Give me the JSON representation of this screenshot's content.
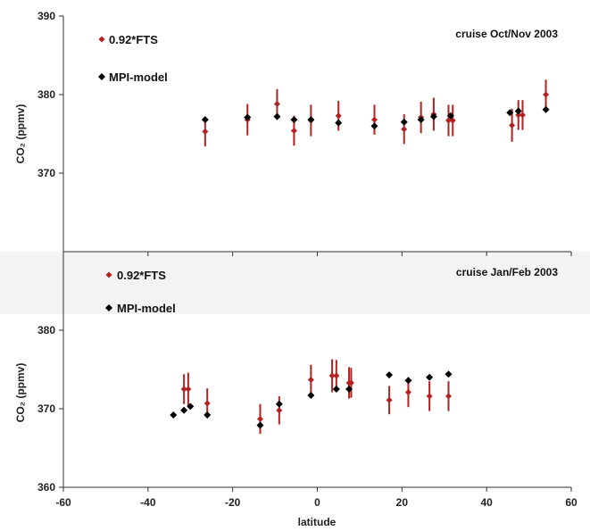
{
  "colors": {
    "fts": "#b22222",
    "model": "#000000",
    "axis": "#333333",
    "panel2_bg": "#f3f3f3"
  },
  "chart_data": [
    {
      "type": "scatter",
      "title": "cruise Oct/Nov 2003",
      "xlabel": "",
      "ylabel": "CO₂ (ppmv)",
      "xlim": [
        -60,
        60
      ],
      "ylim": [
        360,
        390
      ],
      "yticks": [
        370,
        380,
        390
      ],
      "x_tick_labels_shown": false,
      "legend_position": "top-left",
      "series": [
        {
          "name": "0.92*FTS",
          "marker": "diamond",
          "x": [
            -26.5,
            -16.5,
            -9.5,
            -5.5,
            -1.5,
            5,
            13.5,
            20.5,
            24.5,
            27.5,
            31,
            32,
            46,
            47.5,
            48.5,
            54
          ],
          "y": [
            375.3,
            376.8,
            378.8,
            375.4,
            376.7,
            377.3,
            376.8,
            375.6,
            377.1,
            377.5,
            376.7,
            376.7,
            376.1,
            377.4,
            377.4,
            380.0
          ],
          "err": [
            1.9,
            2.0,
            1.9,
            1.9,
            2.0,
            1.9,
            1.9,
            1.9,
            2.0,
            2.1,
            2.0,
            2.0,
            2.1,
            1.9,
            1.9,
            1.9
          ]
        },
        {
          "name": "MPI-model",
          "marker": "diamond",
          "x": [
            -26.5,
            -16.5,
            -9.5,
            -5.5,
            -1.5,
            5,
            13.5,
            20.5,
            24.5,
            27.5,
            31.5,
            45.5,
            47.5,
            54
          ],
          "y": [
            376.8,
            377.1,
            377.2,
            376.8,
            376.8,
            376.4,
            376.0,
            376.5,
            376.8,
            377.2,
            377.3,
            377.7,
            377.9,
            378.1
          ]
        }
      ]
    },
    {
      "type": "scatter",
      "title": "cruise Jan/Feb 2003",
      "xlabel": "latitude",
      "ylabel": "CO₂ (ppmv)",
      "xlim": [
        -60,
        60
      ],
      "ylim": [
        360,
        390
      ],
      "yticks": [
        360,
        370,
        380
      ],
      "xticks": [
        -60,
        -40,
        -20,
        0,
        20,
        40,
        60
      ],
      "legend_position": "top-left",
      "series": [
        {
          "name": "0.92*FTS",
          "marker": "diamond",
          "x": [
            -31.5,
            -30.5,
            -26,
            -13.5,
            -9,
            -1.5,
            3.5,
            4.5,
            7.5,
            8,
            17,
            21.5,
            26.5,
            31
          ],
          "y": [
            372.5,
            372.5,
            370.7,
            368.7,
            369.8,
            373.7,
            374.2,
            374.2,
            373.3,
            373.3,
            371.1,
            372.1,
            371.6,
            371.6
          ],
          "err": [
            1.9,
            2.1,
            1.9,
            1.9,
            1.8,
            1.9,
            2.1,
            2.0,
            2.0,
            1.9,
            1.8,
            1.9,
            1.9,
            1.9
          ]
        },
        {
          "name": "MPI-model",
          "marker": "diamond",
          "x": [
            -34,
            -31.5,
            -30,
            -26,
            -13.5,
            -9,
            -1.5,
            4.5,
            7.5,
            17,
            21.5,
            26.5,
            31
          ],
          "y": [
            369.2,
            369.8,
            370.3,
            369.2,
            367.9,
            370.6,
            371.7,
            372.5,
            372.5,
            374.3,
            373.6,
            374.0,
            374.4
          ]
        }
      ]
    }
  ]
}
